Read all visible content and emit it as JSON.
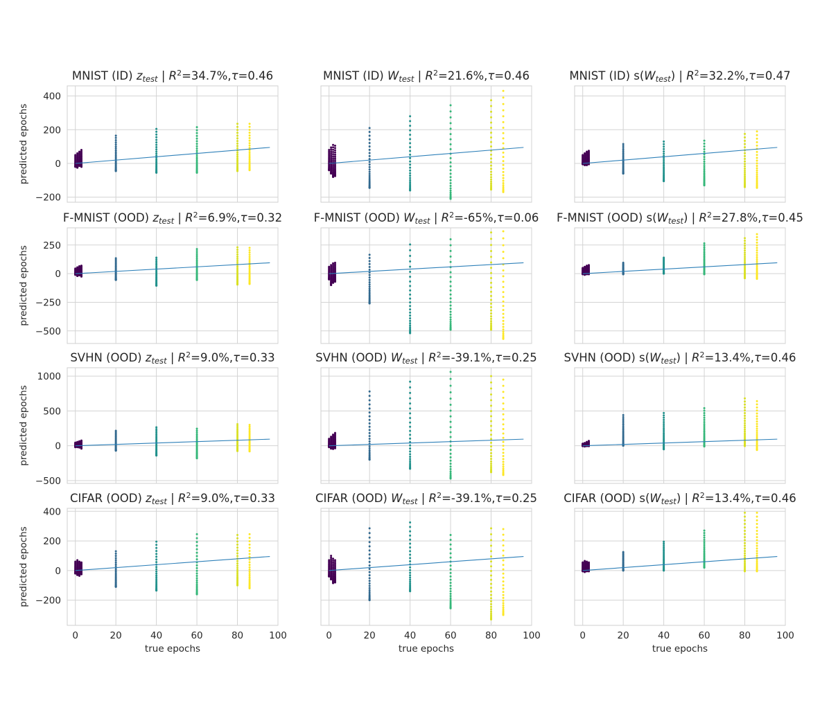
{
  "figure": {
    "ylabel": "predicted epochs",
    "xlabel": "true epochs"
  },
  "colors": {
    "fit_line": "#2c7fb8",
    "grid": "#d3d3d3",
    "frame": "#cfcfcf",
    "epoch_colors": [
      {
        "epoch": 0,
        "color": "#440154"
      },
      {
        "epoch": 20,
        "color": "#31688e"
      },
      {
        "epoch": 40,
        "color": "#21918c"
      },
      {
        "epoch": 60,
        "color": "#35b779"
      },
      {
        "epoch": 80,
        "color": "#d9e024"
      },
      {
        "epoch": 86,
        "color": "#fde725"
      }
    ]
  },
  "chart_data": [
    {
      "type": "scatter",
      "row": 0,
      "col": 0,
      "title": "MNIST (ID)  z_test | R²=34.7%,τ=0.46",
      "title_parts": {
        "dataset": "MNIST (ID) ",
        "sym": "z",
        "sub": "test",
        "pre": "",
        "post": "",
        "r2": "34.7%",
        "tau": "0.46"
      },
      "ylim": [
        -230,
        460
      ],
      "yticks": [
        -200,
        0,
        200,
        400
      ],
      "yticklabels": [
        "−200",
        "0",
        "200",
        "400"
      ],
      "xlim": [
        -4,
        100
      ],
      "xticks": [
        0,
        20,
        40,
        60,
        80,
        100
      ],
      "fit_line": {
        "x": [
          0,
          96
        ],
        "y": [
          0,
          95
        ]
      },
      "groups": [
        {
          "x": 0,
          "min": -20,
          "max": 50
        },
        {
          "x": 1,
          "min": -25,
          "max": 60
        },
        {
          "x": 2,
          "min": -15,
          "max": 70
        },
        {
          "x": 3,
          "min": -20,
          "max": 80
        },
        {
          "x": 20,
          "min": -45,
          "max": 165
        },
        {
          "x": 40,
          "min": -55,
          "max": 205
        },
        {
          "x": 60,
          "min": -55,
          "max": 215
        },
        {
          "x": 80,
          "min": -45,
          "max": 235
        },
        {
          "x": 86,
          "min": -40,
          "max": 235
        }
      ]
    },
    {
      "type": "scatter",
      "row": 0,
      "col": 1,
      "title": "MNIST (ID) W_test | R²=21.6%,τ=0.46",
      "title_parts": {
        "dataset": "MNIST (ID)",
        "sym": "W",
        "sub": "test",
        "pre": "",
        "post": "",
        "r2": "21.6%",
        "tau": "0.46"
      },
      "ylim": [
        -230,
        460
      ],
      "yticks": [
        -200,
        0,
        200,
        400
      ],
      "yticklabels": [
        "",
        "",
        "",
        ""
      ],
      "xlim": [
        -4,
        100
      ],
      "xticks": [
        0,
        20,
        40,
        60,
        80,
        100
      ],
      "fit_line": {
        "x": [
          0,
          96
        ],
        "y": [
          0,
          95
        ]
      },
      "groups": [
        {
          "x": 0,
          "min": -40,
          "max": 80
        },
        {
          "x": 1,
          "min": -60,
          "max": 95
        },
        {
          "x": 2,
          "min": -80,
          "max": 110
        },
        {
          "x": 3,
          "min": -75,
          "max": 105
        },
        {
          "x": 20,
          "min": -145,
          "max": 210
        },
        {
          "x": 40,
          "min": -160,
          "max": 280
        },
        {
          "x": 60,
          "min": -210,
          "max": 345
        },
        {
          "x": 80,
          "min": -155,
          "max": 375
        },
        {
          "x": 86,
          "min": -170,
          "max": 430
        }
      ]
    },
    {
      "type": "scatter",
      "row": 0,
      "col": 2,
      "title": "MNIST (ID)  s(W_test) | R²=32.2%,τ=0.47",
      "title_parts": {
        "dataset": "MNIST (ID) ",
        "sym": "W",
        "sub": "test",
        "pre": "s(",
        "post": ")",
        "r2": "32.2%",
        "tau": "0.47"
      },
      "ylim": [
        -230,
        460
      ],
      "yticks": [
        -200,
        0,
        200,
        400
      ],
      "yticklabels": [
        "",
        "",
        "",
        ""
      ],
      "xlim": [
        -4,
        100
      ],
      "xticks": [
        0,
        20,
        40,
        60,
        80,
        100
      ],
      "fit_line": {
        "x": [
          0,
          96
        ],
        "y": [
          0,
          95
        ]
      },
      "groups": [
        {
          "x": 0,
          "min": -5,
          "max": 50
        },
        {
          "x": 1,
          "min": -10,
          "max": 60
        },
        {
          "x": 2,
          "min": -10,
          "max": 70
        },
        {
          "x": 3,
          "min": -5,
          "max": 75
        },
        {
          "x": 20,
          "min": -60,
          "max": 115
        },
        {
          "x": 40,
          "min": -105,
          "max": 130
        },
        {
          "x": 60,
          "min": -130,
          "max": 135
        },
        {
          "x": 80,
          "min": -140,
          "max": 175
        },
        {
          "x": 86,
          "min": -145,
          "max": 190
        }
      ]
    },
    {
      "type": "scatter",
      "row": 1,
      "col": 0,
      "title": "F-MNIST (OOD) z_test | R²=6.9%,τ=0.32",
      "title_parts": {
        "dataset": "F-MNIST (OOD)",
        "sym": "z",
        "sub": "test",
        "pre": "",
        "post": "",
        "r2": "6.9%",
        "tau": "0.32"
      },
      "ylim": [
        -610,
        400
      ],
      "yticks": [
        -500,
        -250,
        0,
        250
      ],
      "yticklabels": [
        "−500",
        "−250",
        "0",
        "250"
      ],
      "xlim": [
        -4,
        100
      ],
      "xticks": [
        0,
        20,
        40,
        60,
        80,
        100
      ],
      "fit_line": {
        "x": [
          0,
          96
        ],
        "y": [
          0,
          95
        ]
      },
      "groups": [
        {
          "x": 0,
          "min": -10,
          "max": 45
        },
        {
          "x": 1,
          "min": -20,
          "max": 55
        },
        {
          "x": 2,
          "min": -15,
          "max": 65
        },
        {
          "x": 3,
          "min": -25,
          "max": 70
        },
        {
          "x": 20,
          "min": -55,
          "max": 135
        },
        {
          "x": 40,
          "min": -105,
          "max": 140
        },
        {
          "x": 60,
          "min": -55,
          "max": 215
        },
        {
          "x": 80,
          "min": -95,
          "max": 230
        },
        {
          "x": 86,
          "min": -90,
          "max": 225
        }
      ]
    },
    {
      "type": "scatter",
      "row": 1,
      "col": 1,
      "title": "F-MNIST (OOD) W_test | R²=-65%,τ=0.06",
      "title_parts": {
        "dataset": "F-MNIST (OOD)",
        "sym": "W",
        "sub": "test",
        "pre": "",
        "post": "",
        "r2": "-65%",
        "tau": "0.06"
      },
      "ylim": [
        -610,
        400
      ],
      "yticks": [
        -500,
        -250,
        0,
        250
      ],
      "yticklabels": [
        "",
        "",
        "",
        ""
      ],
      "xlim": [
        -4,
        100
      ],
      "xticks": [
        0,
        20,
        40,
        60,
        80,
        100
      ],
      "fit_line": {
        "x": [
          0,
          96
        ],
        "y": [
          0,
          95
        ]
      },
      "groups": [
        {
          "x": 0,
          "min": -50,
          "max": 60
        },
        {
          "x": 1,
          "min": -100,
          "max": 75
        },
        {
          "x": 2,
          "min": -80,
          "max": 90
        },
        {
          "x": 3,
          "min": -70,
          "max": 95
        },
        {
          "x": 20,
          "min": -260,
          "max": 165
        },
        {
          "x": 40,
          "min": -520,
          "max": 255
        },
        {
          "x": 60,
          "min": -490,
          "max": 300
        },
        {
          "x": 80,
          "min": -490,
          "max": 360
        },
        {
          "x": 86,
          "min": -570,
          "max": 370
        }
      ]
    },
    {
      "type": "scatter",
      "row": 1,
      "col": 2,
      "title": "F-MNIST (OOD) s(W_test) | R²=27.8%,τ=0.45",
      "title_parts": {
        "dataset": "F-MNIST (OOD)",
        "sym": "W",
        "sub": "test",
        "pre": "s(",
        "post": ")",
        "r2": "27.8%",
        "tau": "0.45"
      },
      "ylim": [
        -610,
        400
      ],
      "yticks": [
        -500,
        -250,
        0,
        250
      ],
      "yticklabels": [
        "",
        "",
        "",
        ""
      ],
      "xlim": [
        -4,
        100
      ],
      "xticks": [
        0,
        20,
        40,
        60,
        80,
        100
      ],
      "fit_line": {
        "x": [
          0,
          96
        ],
        "y": [
          0,
          95
        ]
      },
      "groups": [
        {
          "x": 0,
          "min": -5,
          "max": 50
        },
        {
          "x": 1,
          "min": -10,
          "max": 60
        },
        {
          "x": 2,
          "min": -5,
          "max": 70
        },
        {
          "x": 3,
          "min": -5,
          "max": 75
        },
        {
          "x": 20,
          "min": -5,
          "max": 95
        },
        {
          "x": 40,
          "min": 0,
          "max": 140
        },
        {
          "x": 60,
          "min": -5,
          "max": 265
        },
        {
          "x": 80,
          "min": -40,
          "max": 310
        },
        {
          "x": 86,
          "min": -45,
          "max": 345
        }
      ]
    },
    {
      "type": "scatter",
      "row": 2,
      "col": 0,
      "title": "SVHN (OOD) z_test | R²=9.0%,τ=0.33",
      "title_parts": {
        "dataset": "SVHN (OOD)",
        "sym": "z",
        "sub": "test",
        "pre": "",
        "post": "",
        "r2": "9.0%",
        "tau": "0.33"
      },
      "ylim": [
        -540,
        1120
      ],
      "yticks": [
        -500,
        0,
        500,
        1000
      ],
      "yticklabels": [
        "−500",
        "0",
        "500",
        "1000"
      ],
      "xlim": [
        -4,
        100
      ],
      "xticks": [
        0,
        20,
        40,
        60,
        80,
        100
      ],
      "fit_line": {
        "x": [
          0,
          96
        ],
        "y": [
          0,
          95
        ]
      },
      "groups": [
        {
          "x": 0,
          "min": -20,
          "max": 45
        },
        {
          "x": 1,
          "min": -20,
          "max": 55
        },
        {
          "x": 2,
          "min": -25,
          "max": 65
        },
        {
          "x": 3,
          "min": -40,
          "max": 75
        },
        {
          "x": 20,
          "min": -70,
          "max": 215
        },
        {
          "x": 40,
          "min": -140,
          "max": 265
        },
        {
          "x": 60,
          "min": -180,
          "max": 245
        },
        {
          "x": 80,
          "min": -75,
          "max": 310
        },
        {
          "x": 86,
          "min": -80,
          "max": 300
        }
      ]
    },
    {
      "type": "scatter",
      "row": 2,
      "col": 1,
      "title": "SVHN (OOD) W_test | R²=-39.1%,τ=0.25",
      "title_parts": {
        "dataset": "SVHN (OOD)",
        "sym": "W",
        "sub": "test",
        "pre": "",
        "post": "",
        "r2": "-39.1%",
        "tau": "0.25"
      },
      "ylim": [
        -540,
        1120
      ],
      "yticks": [
        -500,
        0,
        500,
        1000
      ],
      "yticklabels": [
        "",
        "",
        "",
        ""
      ],
      "xlim": [
        -4,
        100
      ],
      "xticks": [
        0,
        20,
        40,
        60,
        80,
        100
      ],
      "fit_line": {
        "x": [
          0,
          96
        ],
        "y": [
          0,
          95
        ]
      },
      "groups": [
        {
          "x": 0,
          "min": -20,
          "max": 100
        },
        {
          "x": 1,
          "min": -40,
          "max": 130
        },
        {
          "x": 2,
          "min": -45,
          "max": 160
        },
        {
          "x": 3,
          "min": -35,
          "max": 185
        },
        {
          "x": 20,
          "min": -200,
          "max": 780
        },
        {
          "x": 40,
          "min": -330,
          "max": 920
        },
        {
          "x": 60,
          "min": -470,
          "max": 1060
        },
        {
          "x": 80,
          "min": -380,
          "max": 1000
        },
        {
          "x": 86,
          "min": -420,
          "max": 950
        }
      ]
    },
    {
      "type": "scatter",
      "row": 2,
      "col": 2,
      "title": "SVHN (OOD) s(W_test) | R²=13.4%,τ=0.46",
      "title_parts": {
        "dataset": "SVHN (OOD)",
        "sym": "W",
        "sub": "test",
        "pre": "s(",
        "post": ")",
        "r2": "13.4%",
        "tau": "0.46"
      },
      "ylim": [
        -540,
        1120
      ],
      "yticks": [
        -500,
        0,
        500,
        1000
      ],
      "yticklabels": [
        "",
        "",
        "",
        ""
      ],
      "xlim": [
        -4,
        100
      ],
      "xticks": [
        0,
        20,
        40,
        60,
        80,
        100
      ],
      "fit_line": {
        "x": [
          0,
          96
        ],
        "y": [
          0,
          95
        ]
      },
      "groups": [
        {
          "x": 0,
          "min": -5,
          "max": 30
        },
        {
          "x": 1,
          "min": -10,
          "max": 40
        },
        {
          "x": 2,
          "min": -5,
          "max": 55
        },
        {
          "x": 3,
          "min": -5,
          "max": 70
        },
        {
          "x": 20,
          "min": 0,
          "max": 440
        },
        {
          "x": 40,
          "min": -50,
          "max": 470
        },
        {
          "x": 60,
          "min": -10,
          "max": 540
        },
        {
          "x": 80,
          "min": -5,
          "max": 680
        },
        {
          "x": 86,
          "min": -60,
          "max": 640
        }
      ]
    },
    {
      "type": "scatter",
      "row": 3,
      "col": 0,
      "title": "CIFAR (OOD) z_test | R²=9.0%,τ=0.33",
      "title_parts": {
        "dataset": "CIFAR (OOD)",
        "sym": "z",
        "sub": "test",
        "pre": "",
        "post": "",
        "r2": "9.0%",
        "tau": "0.33"
      },
      "ylim": [
        -370,
        420
      ],
      "yticks": [
        -200,
        0,
        200,
        400
      ],
      "yticklabels": [
        "−200",
        "0",
        "200",
        "400"
      ],
      "xlim": [
        -4,
        100
      ],
      "xticks": [
        0,
        20,
        40,
        60,
        80,
        100
      ],
      "xticklabels": [
        "0",
        "20",
        "40",
        "60",
        "80",
        "100"
      ],
      "fit_line": {
        "x": [
          0,
          96
        ],
        "y": [
          0,
          95
        ]
      },
      "groups": [
        {
          "x": 0,
          "min": -20,
          "max": 60
        },
        {
          "x": 1,
          "min": -30,
          "max": 70
        },
        {
          "x": 2,
          "min": -35,
          "max": 60
        },
        {
          "x": 3,
          "min": -25,
          "max": 55
        },
        {
          "x": 20,
          "min": -110,
          "max": 130
        },
        {
          "x": 40,
          "min": -135,
          "max": 195
        },
        {
          "x": 60,
          "min": -160,
          "max": 245
        },
        {
          "x": 80,
          "min": -100,
          "max": 240
        },
        {
          "x": 86,
          "min": -120,
          "max": 245
        }
      ]
    },
    {
      "type": "scatter",
      "row": 3,
      "col": 1,
      "title": "CIFAR (OOD) W_test | R²=-39.1%,τ=0.25",
      "title_parts": {
        "dataset": "CIFAR (OOD)",
        "sym": "W",
        "sub": "test",
        "pre": "",
        "post": "",
        "r2": "-39.1%",
        "tau": "0.25"
      },
      "ylim": [
        -370,
        420
      ],
      "yticks": [
        -200,
        0,
        200,
        400
      ],
      "yticklabels": [
        "",
        "",
        "",
        ""
      ],
      "xlim": [
        -4,
        100
      ],
      "xticks": [
        0,
        20,
        40,
        60,
        80,
        100
      ],
      "xticklabels": [
        "0",
        "20",
        "40",
        "60",
        "80",
        "100"
      ],
      "fit_line": {
        "x": [
          0,
          96
        ],
        "y": [
          0,
          95
        ]
      },
      "groups": [
        {
          "x": 0,
          "min": -40,
          "max": 70
        },
        {
          "x": 1,
          "min": -60,
          "max": 100
        },
        {
          "x": 2,
          "min": -85,
          "max": 80
        },
        {
          "x": 3,
          "min": -80,
          "max": 70
        },
        {
          "x": 20,
          "min": -200,
          "max": 285
        },
        {
          "x": 40,
          "min": -140,
          "max": 325
        },
        {
          "x": 60,
          "min": -255,
          "max": 240
        },
        {
          "x": 80,
          "min": -330,
          "max": 285
        },
        {
          "x": 86,
          "min": -300,
          "max": 280
        }
      ]
    },
    {
      "type": "scatter",
      "row": 3,
      "col": 2,
      "title": "CIFAR (OOD) s(W_test) | R²=13.4%,τ=0.46",
      "title_parts": {
        "dataset": "CIFAR (OOD)",
        "sym": "W",
        "sub": "test",
        "pre": "s(",
        "post": ")",
        "r2": "13.4%",
        "tau": "0.46"
      },
      "ylim": [
        -370,
        420
      ],
      "yticks": [
        -200,
        0,
        200,
        400
      ],
      "yticklabels": [
        "",
        "",
        "",
        ""
      ],
      "xlim": [
        -4,
        100
      ],
      "xticks": [
        0,
        20,
        40,
        60,
        80,
        100
      ],
      "xticklabels": [
        "0",
        "20",
        "40",
        "60",
        "80",
        "100"
      ],
      "fit_line": {
        "x": [
          0,
          96
        ],
        "y": [
          0,
          95
        ]
      },
      "groups": [
        {
          "x": 0,
          "min": -5,
          "max": 55
        },
        {
          "x": 1,
          "min": -10,
          "max": 65
        },
        {
          "x": 2,
          "min": -5,
          "max": 60
        },
        {
          "x": 3,
          "min": -5,
          "max": 55
        },
        {
          "x": 20,
          "min": 0,
          "max": 125
        },
        {
          "x": 40,
          "min": 0,
          "max": 195
        },
        {
          "x": 60,
          "min": 20,
          "max": 270
        },
        {
          "x": 80,
          "min": -5,
          "max": 390
        },
        {
          "x": 86,
          "min": -5,
          "max": 390
        }
      ]
    }
  ]
}
